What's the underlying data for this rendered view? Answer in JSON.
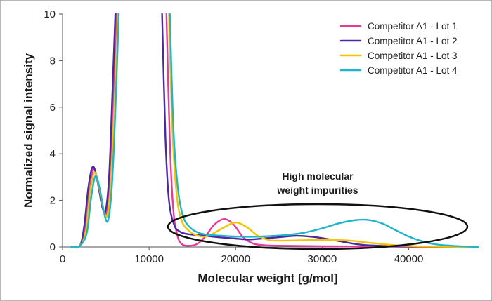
{
  "chart_data": {
    "type": "line",
    "title": "",
    "xlabel": "Molecular weight [g/mol]",
    "ylabel": "Normalized signal intensity",
    "xlim": [
      0,
      48000
    ],
    "ylim": [
      0,
      10
    ],
    "x_ticks": [
      0,
      10000,
      20000,
      30000,
      40000
    ],
    "y_ticks": [
      0,
      2,
      4,
      6,
      8,
      10
    ],
    "grid": false,
    "legend_position": "top-right",
    "annotation": {
      "lines": [
        "High molecular",
        "weight impurities"
      ]
    },
    "series": [
      {
        "name": "Competitor A1 - Lot 1",
        "color": "#e8389a",
        "points": [
          [
            1000,
            0
          ],
          [
            2000,
            0.05
          ],
          [
            2600,
            0.7
          ],
          [
            3100,
            2.3
          ],
          [
            3600,
            3.35
          ],
          [
            4100,
            2.7
          ],
          [
            4700,
            1.6
          ],
          [
            5100,
            1.5
          ],
          [
            5500,
            3.0
          ],
          [
            5900,
            6.5
          ],
          [
            6250,
            10.0
          ],
          [
            12000,
            10.0
          ],
          [
            12400,
            4.5
          ],
          [
            12800,
            1.6
          ],
          [
            13300,
            0.45
          ],
          [
            13800,
            0.12
          ],
          [
            14500,
            0.05
          ],
          [
            15500,
            0.12
          ],
          [
            16500,
            0.45
          ],
          [
            17500,
            0.95
          ],
          [
            18700,
            1.2
          ],
          [
            19800,
            0.95
          ],
          [
            20800,
            0.45
          ],
          [
            22000,
            0.15
          ],
          [
            23500,
            0.07
          ],
          [
            26000,
            0.05
          ],
          [
            30000,
            0.03
          ],
          [
            35000,
            0.02
          ],
          [
            40000,
            0.01
          ],
          [
            48000,
            0
          ]
        ]
      },
      {
        "name": "Competitor A1 - Lot 2",
        "color": "#4b2aa0",
        "points": [
          [
            1000,
            0
          ],
          [
            2000,
            0.05
          ],
          [
            2500,
            0.9
          ],
          [
            3000,
            2.6
          ],
          [
            3500,
            3.45
          ],
          [
            4000,
            2.9
          ],
          [
            4600,
            1.7
          ],
          [
            5000,
            1.6
          ],
          [
            5400,
            3.2
          ],
          [
            5800,
            7.0
          ],
          [
            6100,
            10.0
          ],
          [
            11500,
            10.0
          ],
          [
            11900,
            4.6
          ],
          [
            12300,
            2.0
          ],
          [
            12900,
            0.95
          ],
          [
            13600,
            0.65
          ],
          [
            14500,
            0.55
          ],
          [
            16000,
            0.5
          ],
          [
            18000,
            0.42
          ],
          [
            20000,
            0.36
          ],
          [
            21500,
            0.32
          ],
          [
            23000,
            0.36
          ],
          [
            25000,
            0.42
          ],
          [
            27000,
            0.48
          ],
          [
            28500,
            0.45
          ],
          [
            30000,
            0.38
          ],
          [
            32000,
            0.25
          ],
          [
            34000,
            0.12
          ],
          [
            36000,
            0.06
          ],
          [
            40000,
            0.02
          ],
          [
            48000,
            0
          ]
        ]
      },
      {
        "name": "Competitor A1 - Lot 3",
        "color": "#f5c400",
        "points": [
          [
            1000,
            0
          ],
          [
            2000,
            0.05
          ],
          [
            2700,
            0.7
          ],
          [
            3200,
            2.4
          ],
          [
            3700,
            3.2
          ],
          [
            4200,
            2.6
          ],
          [
            4800,
            1.5
          ],
          [
            5200,
            1.4
          ],
          [
            5600,
            2.9
          ],
          [
            6000,
            6.2
          ],
          [
            6400,
            10.0
          ],
          [
            12300,
            10.0
          ],
          [
            12700,
            5.0
          ],
          [
            13200,
            2.2
          ],
          [
            13800,
            1.1
          ],
          [
            14600,
            0.7
          ],
          [
            15500,
            0.5
          ],
          [
            16500,
            0.45
          ],
          [
            17500,
            0.6
          ],
          [
            18700,
            0.85
          ],
          [
            20000,
            1.05
          ],
          [
            21300,
            0.85
          ],
          [
            22500,
            0.5
          ],
          [
            23800,
            0.3
          ],
          [
            25000,
            0.27
          ],
          [
            27000,
            0.28
          ],
          [
            29000,
            0.3
          ],
          [
            31000,
            0.3
          ],
          [
            33000,
            0.28
          ],
          [
            35000,
            0.2
          ],
          [
            37000,
            0.12
          ],
          [
            39000,
            0.06
          ],
          [
            42000,
            0.02
          ],
          [
            48000,
            0
          ]
        ]
      },
      {
        "name": "Competitor A1 - Lot 4",
        "color": "#1fb5c9",
        "points": [
          [
            1000,
            0
          ],
          [
            2000,
            0.05
          ],
          [
            2800,
            0.6
          ],
          [
            3300,
            2.1
          ],
          [
            3800,
            3.05
          ],
          [
            4300,
            2.5
          ],
          [
            4900,
            1.3
          ],
          [
            5300,
            1.2
          ],
          [
            5700,
            2.6
          ],
          [
            6100,
            5.8
          ],
          [
            6500,
            10.0
          ],
          [
            12400,
            10.0
          ],
          [
            12800,
            5.2
          ],
          [
            13300,
            2.6
          ],
          [
            13900,
            1.35
          ],
          [
            14700,
            0.85
          ],
          [
            15800,
            0.6
          ],
          [
            17000,
            0.52
          ],
          [
            18500,
            0.48
          ],
          [
            20000,
            0.45
          ],
          [
            22000,
            0.44
          ],
          [
            24000,
            0.47
          ],
          [
            26000,
            0.52
          ],
          [
            28000,
            0.62
          ],
          [
            30000,
            0.8
          ],
          [
            32000,
            1.02
          ],
          [
            34000,
            1.16
          ],
          [
            35500,
            1.15
          ],
          [
            37000,
            1.0
          ],
          [
            38500,
            0.72
          ],
          [
            40000,
            0.45
          ],
          [
            41500,
            0.25
          ],
          [
            43000,
            0.12
          ],
          [
            45000,
            0.05
          ],
          [
            48000,
            0
          ]
        ]
      }
    ]
  }
}
